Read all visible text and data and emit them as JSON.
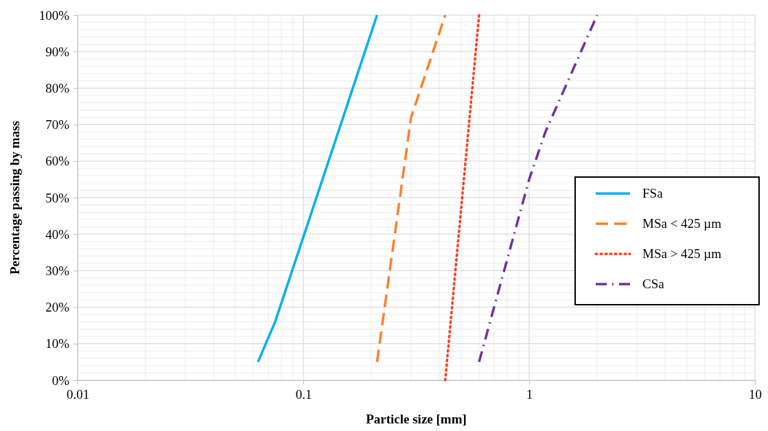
{
  "chart_data": {
    "type": "line",
    "xlabel": "Particle size [mm]",
    "ylabel": "Percentage passing by mass",
    "log": "x",
    "grid": true,
    "legend": "right",
    "xlim": [
      0.01,
      10
    ],
    "xticks": [
      0.01,
      0.1,
      1,
      10
    ],
    "ylim": [
      0,
      100
    ],
    "yticks": [
      {
        "value": 0,
        "label": "0%"
      },
      {
        "value": 10,
        "label": "10%"
      },
      {
        "value": 20,
        "label": "20%"
      },
      {
        "value": 30,
        "label": "30%"
      },
      {
        "value": 40,
        "label": "40%"
      },
      {
        "value": 50,
        "label": "50%"
      },
      {
        "value": 60,
        "label": "60%"
      },
      {
        "value": 70,
        "label": "70%"
      },
      {
        "value": 80,
        "label": "80%"
      },
      {
        "value": 90,
        "label": "90%"
      },
      {
        "value": 100,
        "label": "100%"
      }
    ],
    "series": [
      {
        "name": "FSa",
        "color": "#00b0f0",
        "line_style": "solid",
        "x": [
          0.063,
          0.075,
          0.15,
          0.212
        ],
        "values": [
          5,
          16,
          72,
          100
        ]
      },
      {
        "name": "MSa < 425 µm",
        "color": "#ff7f27",
        "line_style": "dashed",
        "x": [
          0.212,
          0.3,
          0.425
        ],
        "values": [
          5,
          72,
          100
        ]
      },
      {
        "name": "MSa > 425 µm",
        "color": "#ff3b1f",
        "line_style": "dotted",
        "x": [
          0.425,
          0.6
        ],
        "values": [
          0,
          100
        ]
      },
      {
        "name": "CSa",
        "color": "#7030a0",
        "line_style": "dashdot",
        "x": [
          0.6,
          1,
          1.18,
          2
        ],
        "values": [
          5,
          55,
          68,
          100
        ]
      }
    ]
  }
}
